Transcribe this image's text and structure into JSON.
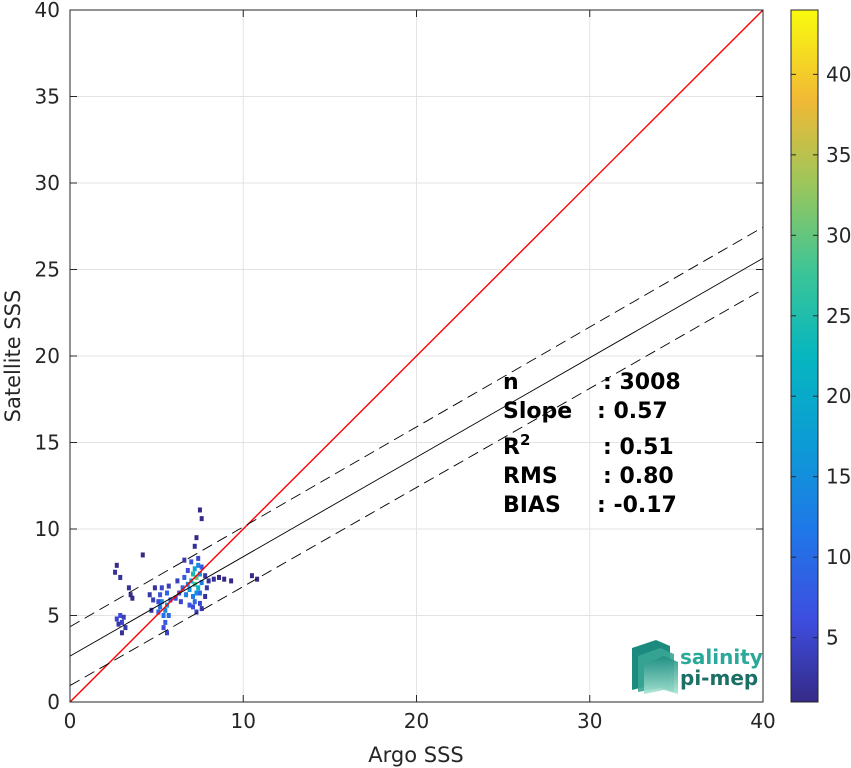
{
  "chart_data": {
    "type": "scatter",
    "subtype": "2d-density-histogram",
    "xlabel": "Argo SSS",
    "ylabel": "Satellite SSS",
    "xlim": [
      0,
      40
    ],
    "ylim": [
      0,
      40
    ],
    "xticks": [
      0,
      10,
      20,
      30,
      40
    ],
    "yticks": [
      0,
      5,
      10,
      15,
      20,
      25,
      30,
      35,
      40
    ],
    "grid": true,
    "colorbar": {
      "range": [
        1,
        44
      ],
      "ticks": [
        5,
        10,
        15,
        20,
        25,
        30,
        35,
        40
      ],
      "colormap": "parula"
    },
    "lines": [
      {
        "kind": "identity",
        "color": "#ff0000",
        "style": "solid",
        "points": [
          [
            0,
            0
          ],
          [
            40,
            40
          ]
        ]
      },
      {
        "kind": "regression",
        "color": "#000000",
        "style": "solid",
        "points": [
          [
            0,
            2.65
          ],
          [
            40,
            25.65
          ]
        ]
      },
      {
        "kind": "regression-upper",
        "color": "#000000",
        "style": "dashed",
        "points": [
          [
            0,
            4.35
          ],
          [
            40,
            27.45
          ]
        ]
      },
      {
        "kind": "regression-lower",
        "color": "#000000",
        "style": "dashed",
        "points": [
          [
            0,
            0.95
          ],
          [
            40,
            23.85
          ]
        ]
      }
    ],
    "stats": [
      {
        "label": "n",
        "value": ": 3008"
      },
      {
        "label": "Slope",
        "value": ": 0.57"
      },
      {
        "label": "R",
        "sup": "2",
        "value": ": 0.51"
      },
      {
        "label": "RMS",
        "value": ": 0.80"
      },
      {
        "label": "BIAS",
        "value": ": -0.17"
      }
    ],
    "points": [
      {
        "x": 2.7,
        "y": 4.8,
        "c": 5
      },
      {
        "x": 2.9,
        "y": 5.0,
        "c": 6
      },
      {
        "x": 3.0,
        "y": 4.6,
        "c": 5
      },
      {
        "x": 3.1,
        "y": 4.9,
        "c": 4
      },
      {
        "x": 2.8,
        "y": 4.5,
        "c": 3
      },
      {
        "x": 3.2,
        "y": 4.3,
        "c": 3
      },
      {
        "x": 3.0,
        "y": 4.0,
        "c": 2
      },
      {
        "x": 2.6,
        "y": 7.5,
        "c": 2
      },
      {
        "x": 2.7,
        "y": 7.9,
        "c": 1
      },
      {
        "x": 2.9,
        "y": 7.2,
        "c": 2
      },
      {
        "x": 3.4,
        "y": 6.6,
        "c": 2
      },
      {
        "x": 3.5,
        "y": 6.2,
        "c": 1
      },
      {
        "x": 3.6,
        "y": 6.0,
        "c": 1
      },
      {
        "x": 4.2,
        "y": 8.5,
        "c": 1
      },
      {
        "x": 4.6,
        "y": 6.2,
        "c": 3
      },
      {
        "x": 4.8,
        "y": 5.9,
        "c": 4
      },
      {
        "x": 4.7,
        "y": 5.3,
        "c": 3
      },
      {
        "x": 4.9,
        "y": 6.6,
        "c": 2
      },
      {
        "x": 5.1,
        "y": 5.2,
        "c": 9
      },
      {
        "x": 5.2,
        "y": 5.5,
        "c": 12
      },
      {
        "x": 5.3,
        "y": 5.8,
        "c": 15
      },
      {
        "x": 5.4,
        "y": 5.0,
        "c": 11
      },
      {
        "x": 5.5,
        "y": 5.3,
        "c": 14
      },
      {
        "x": 5.6,
        "y": 5.6,
        "c": 18
      },
      {
        "x": 5.5,
        "y": 4.6,
        "c": 8
      },
      {
        "x": 5.4,
        "y": 4.3,
        "c": 6
      },
      {
        "x": 5.6,
        "y": 4.0,
        "c": 5
      },
      {
        "x": 5.2,
        "y": 6.2,
        "c": 7
      },
      {
        "x": 5.6,
        "y": 6.3,
        "c": 9
      },
      {
        "x": 5.3,
        "y": 6.6,
        "c": 5
      },
      {
        "x": 5.7,
        "y": 5.0,
        "c": 10
      },
      {
        "x": 5.8,
        "y": 5.9,
        "c": 8
      },
      {
        "x": 5.1,
        "y": 5.8,
        "c": 6
      },
      {
        "x": 5.7,
        "y": 6.7,
        "c": 4
      },
      {
        "x": 6.1,
        "y": 6.0,
        "c": 6
      },
      {
        "x": 6.3,
        "y": 6.3,
        "c": 7
      },
      {
        "x": 6.5,
        "y": 6.6,
        "c": 9
      },
      {
        "x": 6.4,
        "y": 5.8,
        "c": 5
      },
      {
        "x": 6.7,
        "y": 6.2,
        "c": 12
      },
      {
        "x": 6.8,
        "y": 6.8,
        "c": 14
      },
      {
        "x": 6.6,
        "y": 7.2,
        "c": 8
      },
      {
        "x": 6.9,
        "y": 6.5,
        "c": 16
      },
      {
        "x": 6.2,
        "y": 7.0,
        "c": 4
      },
      {
        "x": 6.8,
        "y": 7.6,
        "c": 6
      },
      {
        "x": 6.6,
        "y": 8.2,
        "c": 3
      },
      {
        "x": 6.9,
        "y": 5.6,
        "c": 7
      },
      {
        "x": 7.0,
        "y": 7.0,
        "c": 20
      },
      {
        "x": 7.1,
        "y": 7.4,
        "c": 24
      },
      {
        "x": 7.2,
        "y": 6.8,
        "c": 28
      },
      {
        "x": 7.3,
        "y": 7.2,
        "c": 30
      },
      {
        "x": 7.2,
        "y": 7.7,
        "c": 18
      },
      {
        "x": 7.4,
        "y": 6.6,
        "c": 22
      },
      {
        "x": 7.3,
        "y": 6.3,
        "c": 15
      },
      {
        "x": 7.1,
        "y": 6.1,
        "c": 13
      },
      {
        "x": 7.2,
        "y": 5.8,
        "c": 9
      },
      {
        "x": 7.4,
        "y": 7.9,
        "c": 14
      },
      {
        "x": 7.5,
        "y": 7.4,
        "c": 16
      },
      {
        "x": 7.6,
        "y": 6.9,
        "c": 12
      },
      {
        "x": 7.5,
        "y": 6.3,
        "c": 10
      },
      {
        "x": 7.6,
        "y": 7.8,
        "c": 8
      },
      {
        "x": 7.0,
        "y": 8.1,
        "c": 7
      },
      {
        "x": 7.4,
        "y": 8.3,
        "c": 5
      },
      {
        "x": 7.1,
        "y": 5.5,
        "c": 6
      },
      {
        "x": 7.5,
        "y": 5.7,
        "c": 5
      },
      {
        "x": 7.3,
        "y": 5.2,
        "c": 4
      },
      {
        "x": 7.6,
        "y": 5.4,
        "c": 3
      },
      {
        "x": 7.2,
        "y": 9.0,
        "c": 2
      },
      {
        "x": 7.3,
        "y": 9.5,
        "c": 1
      },
      {
        "x": 7.6,
        "y": 10.6,
        "c": 1
      },
      {
        "x": 7.5,
        "y": 11.1,
        "c": 1
      },
      {
        "x": 7.8,
        "y": 7.3,
        "c": 3
      },
      {
        "x": 7.9,
        "y": 6.6,
        "c": 3
      },
      {
        "x": 7.8,
        "y": 6.1,
        "c": 2
      },
      {
        "x": 8.0,
        "y": 7.0,
        "c": 2
      },
      {
        "x": 8.3,
        "y": 7.1,
        "c": 2
      },
      {
        "x": 8.6,
        "y": 7.2,
        "c": 1
      },
      {
        "x": 8.9,
        "y": 7.1,
        "c": 1
      },
      {
        "x": 9.3,
        "y": 7.0,
        "c": 1
      },
      {
        "x": 10.5,
        "y": 7.3,
        "c": 1
      },
      {
        "x": 10.8,
        "y": 7.1,
        "c": 1
      }
    ]
  },
  "logo": {
    "line1": "salinity",
    "line2": "pi-mep"
  }
}
